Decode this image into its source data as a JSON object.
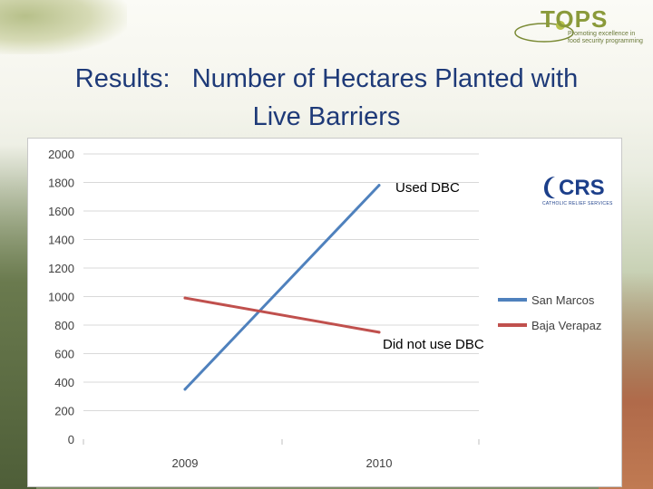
{
  "header": {
    "title_line1": "Results:   Number of Hectares Planted with",
    "title_line2": "Live Barriers"
  },
  "logo": {
    "name": "TOPS",
    "tagline_line1": "Promoting excellence in",
    "tagline_line2": "food security programming"
  },
  "crs_logo": {
    "name": "CRS",
    "subtitle": "CATHOLIC RELIEF SERVICES"
  },
  "colors": {
    "title": "#1e3a78",
    "san_marcos": "#4f81bd",
    "baja_verapaz": "#c0504d"
  },
  "chart_data": {
    "type": "line",
    "categories": [
      "2009",
      "2010"
    ],
    "series": [
      {
        "name": "San Marcos",
        "values": [
          350,
          1780
        ],
        "color": "#4f81bd"
      },
      {
        "name": "Baja Verapaz",
        "values": [
          990,
          750
        ],
        "color": "#c0504d"
      }
    ],
    "ylim": [
      0,
      2000
    ],
    "yticks": [
      0,
      200,
      400,
      600,
      800,
      1000,
      1200,
      1400,
      1600,
      1800,
      2000
    ],
    "grid": true,
    "legend": "right",
    "annotations": [
      {
        "text": "Used DBC",
        "series": "San Marcos",
        "category": "2010"
      },
      {
        "text": "Did not use DBC",
        "series": "Baja Verapaz",
        "category": "2010"
      }
    ]
  }
}
